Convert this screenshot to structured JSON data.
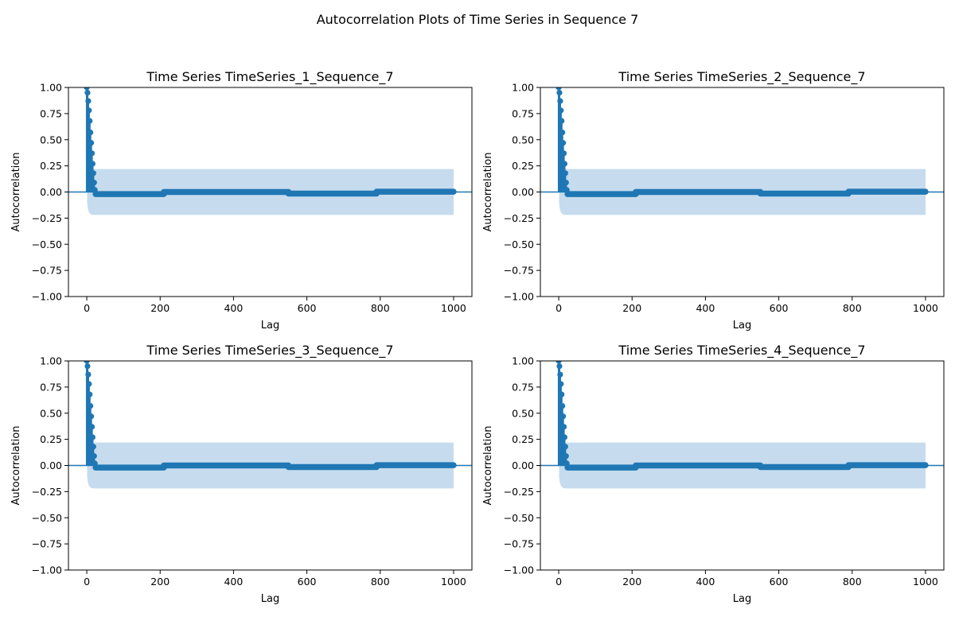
{
  "figure": {
    "title": "Autocorrelation Plots of Time Series in Sequence 7"
  },
  "style": {
    "series_color": "#1f77b4",
    "band_color": "#c6dcee",
    "zero_line_color": "#1f77b4"
  },
  "chart_data": [
    {
      "type": "scatter",
      "subtype": "acf-stem",
      "title": "Time Series TimeSeries_1_Sequence_7",
      "xlabel": "Lag",
      "ylabel": "Autocorrelation",
      "xlim": [
        -50,
        1050
      ],
      "ylim": [
        -1.0,
        1.0
      ],
      "xticks": [
        "0",
        "200",
        "400",
        "600",
        "800",
        "1000"
      ],
      "yticks": [
        "−1.00",
        "−0.75",
        "−0.50",
        "−0.25",
        "0.00",
        "0.25",
        "0.50",
        "0.75",
        "1.00"
      ],
      "grid": false,
      "max_lag": 1000,
      "decay_lags": [
        0,
        2,
        4,
        6,
        8,
        10,
        12,
        14,
        16,
        18,
        20,
        22
      ],
      "decay_values": [
        1.0,
        0.95,
        0.87,
        0.78,
        0.68,
        0.57,
        0.47,
        0.37,
        0.27,
        0.18,
        0.09,
        0.02
      ],
      "tail_levels": [
        {
          "from": 24,
          "to": 210,
          "value": -0.02
        },
        {
          "from": 210,
          "to": 550,
          "value": 0.0
        },
        {
          "from": 550,
          "to": 790,
          "value": -0.015
        },
        {
          "from": 790,
          "to": 1000,
          "value": 0.003
        }
      ],
      "confidence_band": 0.22
    },
    {
      "type": "scatter",
      "subtype": "acf-stem",
      "title": "Time Series TimeSeries_2_Sequence_7",
      "xlabel": "Lag",
      "ylabel": "Autocorrelation",
      "xlim": [
        -50,
        1050
      ],
      "ylim": [
        -1.0,
        1.0
      ],
      "xticks": [
        "0",
        "200",
        "400",
        "600",
        "800",
        "1000"
      ],
      "yticks": [
        "−1.00",
        "−0.75",
        "−0.50",
        "−0.25",
        "0.00",
        "0.25",
        "0.50",
        "0.75",
        "1.00"
      ],
      "grid": false,
      "max_lag": 1000,
      "decay_lags": [
        0,
        2,
        4,
        6,
        8,
        10,
        12,
        14,
        16,
        18,
        20,
        22
      ],
      "decay_values": [
        1.0,
        0.95,
        0.87,
        0.78,
        0.68,
        0.57,
        0.47,
        0.37,
        0.27,
        0.18,
        0.09,
        0.02
      ],
      "tail_levels": [
        {
          "from": 24,
          "to": 210,
          "value": -0.02
        },
        {
          "from": 210,
          "to": 550,
          "value": 0.0
        },
        {
          "from": 550,
          "to": 790,
          "value": -0.015
        },
        {
          "from": 790,
          "to": 1000,
          "value": 0.003
        }
      ],
      "confidence_band": 0.22
    },
    {
      "type": "scatter",
      "subtype": "acf-stem",
      "title": "Time Series TimeSeries_3_Sequence_7",
      "xlabel": "Lag",
      "ylabel": "Autocorrelation",
      "xlim": [
        -50,
        1050
      ],
      "ylim": [
        -1.0,
        1.0
      ],
      "xticks": [
        "0",
        "200",
        "400",
        "600",
        "800",
        "1000"
      ],
      "yticks": [
        "−1.00",
        "−0.75",
        "−0.50",
        "−0.25",
        "0.00",
        "0.25",
        "0.50",
        "0.75",
        "1.00"
      ],
      "grid": false,
      "max_lag": 1000,
      "decay_lags": [
        0,
        2,
        4,
        6,
        8,
        10,
        12,
        14,
        16,
        18,
        20,
        22
      ],
      "decay_values": [
        1.0,
        0.95,
        0.87,
        0.78,
        0.68,
        0.57,
        0.47,
        0.37,
        0.27,
        0.18,
        0.09,
        0.02
      ],
      "tail_levels": [
        {
          "from": 24,
          "to": 210,
          "value": -0.02
        },
        {
          "from": 210,
          "to": 550,
          "value": 0.0
        },
        {
          "from": 550,
          "to": 790,
          "value": -0.015
        },
        {
          "from": 790,
          "to": 1000,
          "value": 0.003
        }
      ],
      "confidence_band": 0.22
    },
    {
      "type": "scatter",
      "subtype": "acf-stem",
      "title": "Time Series TimeSeries_4_Sequence_7",
      "xlabel": "Lag",
      "ylabel": "Autocorrelation",
      "xlim": [
        -50,
        1050
      ],
      "ylim": [
        -1.0,
        1.0
      ],
      "xticks": [
        "0",
        "200",
        "400",
        "600",
        "800",
        "1000"
      ],
      "yticks": [
        "−1.00",
        "−0.75",
        "−0.50",
        "−0.25",
        "0.00",
        "0.25",
        "0.50",
        "0.75",
        "1.00"
      ],
      "grid": false,
      "max_lag": 1000,
      "decay_lags": [
        0,
        2,
        4,
        6,
        8,
        10,
        12,
        14,
        16,
        18,
        20,
        22
      ],
      "decay_values": [
        1.0,
        0.95,
        0.87,
        0.78,
        0.68,
        0.57,
        0.47,
        0.37,
        0.27,
        0.18,
        0.09,
        0.02
      ],
      "tail_levels": [
        {
          "from": 24,
          "to": 210,
          "value": -0.02
        },
        {
          "from": 210,
          "to": 550,
          "value": 0.0
        },
        {
          "from": 550,
          "to": 790,
          "value": -0.015
        },
        {
          "from": 790,
          "to": 1000,
          "value": 0.003
        }
      ],
      "confidence_band": 0.22
    }
  ]
}
